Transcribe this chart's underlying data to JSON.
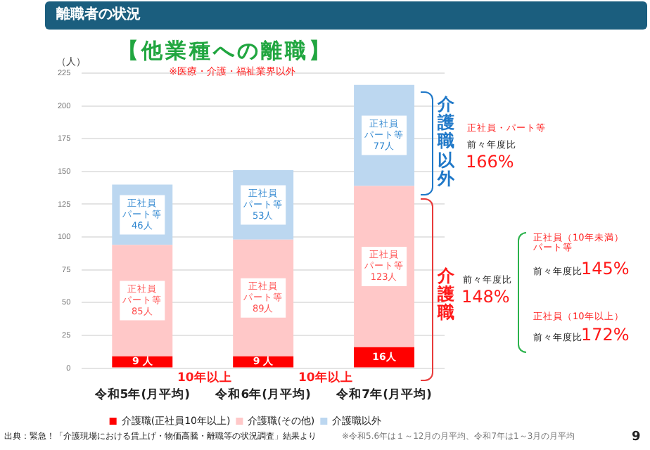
{
  "chart_data": {
    "type": "bar",
    "title": "【他業種への離職】",
    "subtitle": "※医療・介護・福祉業界以外",
    "ylabel": "（人）",
    "categories": [
      "令和5年(月平均)",
      "令和6年(月平均)",
      "令和7年(月平均)"
    ],
    "stacked": true,
    "ylim": [
      0,
      225
    ],
    "yticks": [
      0,
      25,
      50,
      75,
      100,
      125,
      150,
      175,
      200,
      225
    ],
    "grid": "y",
    "legend": "bottom",
    "series": [
      {
        "name": "介護職(正社員10年以上)",
        "color": "#ff0000",
        "values": [
          9,
          9,
          16
        ],
        "value_labels": [
          "9 人",
          "9 人",
          "16人"
        ]
      },
      {
        "name": "介護職(その他)",
        "color": "#ffc8c8",
        "values": [
          85,
          89,
          123
        ],
        "value_labels": [
          "正社員パート等85人",
          "正社員パート等89人",
          "正社員パート等123人"
        ]
      },
      {
        "name": "介護職以外",
        "color": "#bcd7f0",
        "values": [
          46,
          53,
          77
        ],
        "value_labels": [
          "正社員パート等46人",
          "正社員パート等53人",
          "正社員パート等77人"
        ]
      }
    ],
    "annotations": [
      "離職者の状況",
      "10年以上",
      "10年以上",
      "介護職以外",
      "正社員・パート等",
      "前々年度比",
      "166%",
      "介護職",
      "前々年度比",
      "148%",
      "正社員（10年未満）パート等",
      "前々年度比",
      "145%",
      "正社員（10年以上）",
      "前々年度比",
      "172%",
      "出典：緊急！「介護現場における賃上げ・物価高騰・離職等の状況調査」結果より",
      "※令和5.6年は１～12月の月平均、令和7年は1～3月の月平均",
      "9"
    ]
  }
}
